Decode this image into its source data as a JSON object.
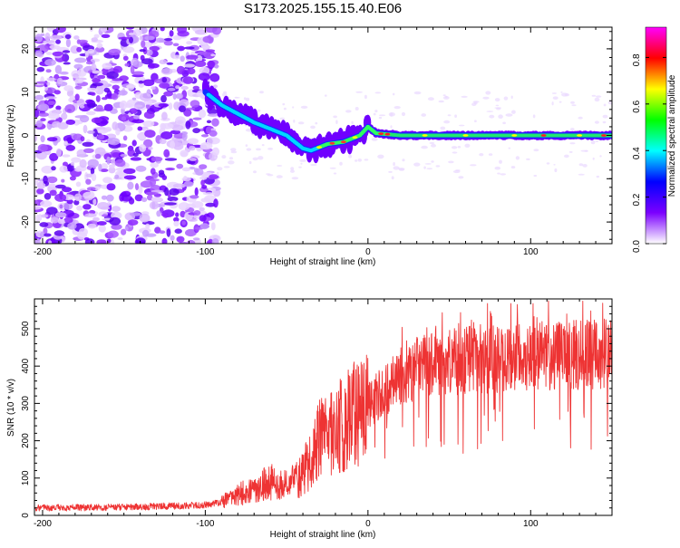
{
  "title": "S173.2025.155.15.40.E06",
  "chart_data": [
    {
      "type": "heatmap",
      "xlabel": "Height of straight line (km)",
      "ylabel": "Frequency (Hz)",
      "xlim": [
        -205,
        150
      ],
      "ylim": [
        -25,
        25
      ],
      "xticks": [
        -200,
        -100,
        0,
        100
      ],
      "yticks": [
        -20,
        -10,
        0,
        10,
        20
      ],
      "colorbar": {
        "label": "Normalized spectral amplitude",
        "range": [
          0,
          0.93
        ],
        "ticks": [
          "0.0",
          "0.2",
          "0.4",
          "0.6",
          "0.8"
        ],
        "colors": [
          "#ffffff",
          "#7b00ff",
          "#0000ff",
          "#00ffff",
          "#00ff00",
          "#ffff00",
          "#ff0000",
          "#ff00ff"
        ]
      },
      "ridge": [
        [
          -100,
          10
        ],
        [
          -90,
          7
        ],
        [
          -80,
          5
        ],
        [
          -70,
          3
        ],
        [
          -60,
          1.5
        ],
        [
          -50,
          0
        ],
        [
          -40,
          -3
        ],
        [
          -35,
          -3.5
        ],
        [
          -25,
          -2
        ],
        [
          -15,
          -1.5
        ],
        [
          -5,
          0
        ],
        [
          0,
          2
        ],
        [
          5,
          0.5
        ],
        [
          20,
          0
        ],
        [
          60,
          0
        ],
        [
          100,
          0
        ],
        [
          150,
          0
        ]
      ]
    },
    {
      "type": "line",
      "xlabel": "Height of straight line (km)",
      "ylabel": "SNR (10 * v/v)",
      "xlim": [
        -205,
        150
      ],
      "ylim": [
        0,
        580
      ],
      "xticks": [
        -200,
        -100,
        0,
        100
      ],
      "yticks": [
        0,
        100,
        200,
        300,
        400,
        500
      ],
      "color": "#ee3333",
      "trend": [
        [
          -205,
          20
        ],
        [
          -150,
          22
        ],
        [
          -120,
          25
        ],
        [
          -100,
          28
        ],
        [
          -90,
          35
        ],
        [
          -80,
          55
        ],
        [
          -70,
          70
        ],
        [
          -60,
          90
        ],
        [
          -50,
          80
        ],
        [
          -40,
          110
        ],
        [
          -30,
          200
        ],
        [
          -20,
          230
        ],
        [
          -10,
          260
        ],
        [
          0,
          300
        ],
        [
          10,
          330
        ],
        [
          20,
          370
        ],
        [
          30,
          395
        ],
        [
          40,
          405
        ],
        [
          60,
          415
        ],
        [
          80,
          420
        ],
        [
          100,
          425
        ],
        [
          120,
          430
        ],
        [
          150,
          435
        ]
      ]
    }
  ]
}
